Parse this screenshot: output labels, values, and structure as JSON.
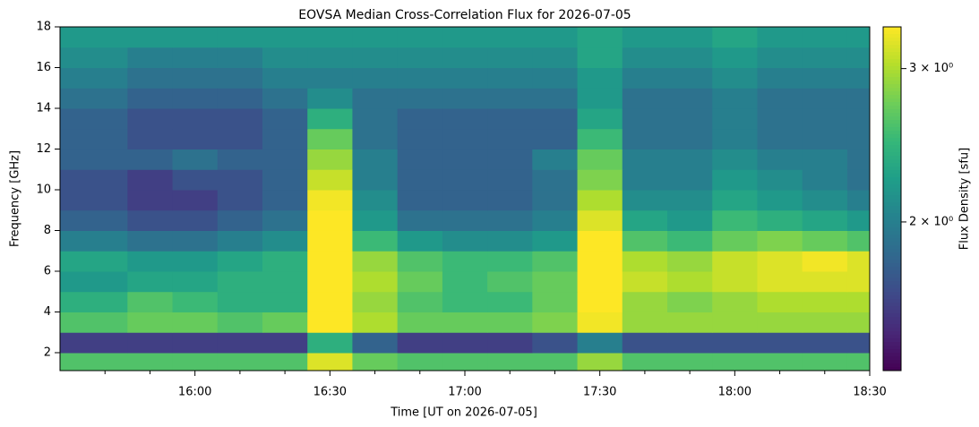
{
  "chart_data": {
    "type": "spectrogram",
    "title": "EOVSA Median Cross-Correlation Flux for 2026-07-05",
    "x_label": "Time [UT on 2026-07-05]",
    "y_label": "Frequency [GHz]",
    "colorbar_label": "Flux Density [sfu]",
    "colormap": "viridis",
    "color_scale": "log",
    "xlim": [
      15.5,
      18.5
    ],
    "xticks": [
      {
        "value": 16,
        "label": "16:00"
      },
      {
        "value": 16.5,
        "label": "16:30"
      },
      {
        "value": 17,
        "label": "17:00"
      },
      {
        "value": 17.5,
        "label": "17:30"
      },
      {
        "value": 18,
        "label": "18:00"
      },
      {
        "value": 18.5,
        "label": "18:30"
      }
    ],
    "xminorticks": [
      15.6667,
      15.8333,
      16.1667,
      16.3333,
      16.6667,
      16.8333,
      17.1667,
      17.3333,
      17.6667,
      17.8333,
      18.1667,
      18.3333
    ],
    "ylim": [
      1.12,
      18
    ],
    "yticks": [
      2,
      4,
      6,
      8,
      10,
      12,
      14,
      16,
      18
    ],
    "clim": [
      1.35,
      3.35
    ],
    "cticks": [
      {
        "value": 2,
        "label": "2 × 10⁰"
      },
      {
        "value": 3,
        "label": "3 × 10⁰"
      }
    ],
    "xbins": [
      15.5,
      15.75,
      15.9167,
      16.0833,
      16.25,
      16.4167,
      16.5833,
      16.75,
      16.9167,
      17.0833,
      17.25,
      17.4167,
      17.5833,
      17.75,
      17.9167,
      18.0833,
      18.25,
      18.4167,
      18.5
    ],
    "ybins": [
      1.12,
      2,
      3,
      4,
      5,
      6,
      7,
      8,
      9,
      10,
      11,
      12,
      13,
      14,
      15,
      16,
      17,
      18
    ],
    "z": [
      [
        2.6,
        2.6,
        2.6,
        2.6,
        2.6,
        3.2,
        2.7,
        2.6,
        2.6,
        2.6,
        2.6,
        2.9,
        2.6,
        2.6,
        2.6,
        2.6,
        2.6,
        2.6
      ],
      [
        1.6,
        1.6,
        1.6,
        1.6,
        1.6,
        2.4,
        1.8,
        1.6,
        1.6,
        1.6,
        1.7,
        2.0,
        1.7,
        1.7,
        1.7,
        1.7,
        1.7,
        1.7
      ],
      [
        2.6,
        2.7,
        2.7,
        2.6,
        2.7,
        3.5,
        3.0,
        2.7,
        2.7,
        2.7,
        2.8,
        3.3,
        2.9,
        2.9,
        2.9,
        2.9,
        2.9,
        2.9
      ],
      [
        2.4,
        2.6,
        2.5,
        2.4,
        2.4,
        3.5,
        2.9,
        2.6,
        2.5,
        2.5,
        2.7,
        3.5,
        2.9,
        2.8,
        2.9,
        3.0,
        3.0,
        3.0
      ],
      [
        2.2,
        2.3,
        2.3,
        2.4,
        2.4,
        3.5,
        3.0,
        2.7,
        2.5,
        2.6,
        2.7,
        3.5,
        3.1,
        3.0,
        3.1,
        3.2,
        3.2,
        3.2
      ],
      [
        2.3,
        2.2,
        2.2,
        2.3,
        2.4,
        3.5,
        2.9,
        2.6,
        2.5,
        2.5,
        2.6,
        3.5,
        3.0,
        2.9,
        3.1,
        3.2,
        3.3,
        3.2
      ],
      [
        2.0,
        1.9,
        1.9,
        2.0,
        2.1,
        3.5,
        2.5,
        2.2,
        2.1,
        2.1,
        2.2,
        3.4,
        2.6,
        2.5,
        2.7,
        2.8,
        2.7,
        2.6
      ],
      [
        1.8,
        1.7,
        1.7,
        1.8,
        1.9,
        3.4,
        2.2,
        1.9,
        1.9,
        1.9,
        2.0,
        3.2,
        2.3,
        2.2,
        2.5,
        2.4,
        2.3,
        2.2
      ],
      [
        1.7,
        1.6,
        1.6,
        1.7,
        1.8,
        3.3,
        2.1,
        1.8,
        1.8,
        1.8,
        1.9,
        3.0,
        2.1,
        2.1,
        2.3,
        2.2,
        2.1,
        2.0
      ],
      [
        1.7,
        1.6,
        1.7,
        1.7,
        1.8,
        3.1,
        2.0,
        1.8,
        1.8,
        1.8,
        1.9,
        2.8,
        2.0,
        2.0,
        2.2,
        2.1,
        2.0,
        1.9
      ],
      [
        1.8,
        1.8,
        1.9,
        1.8,
        1.8,
        2.9,
        2.0,
        1.8,
        1.8,
        1.8,
        2.0,
        2.7,
        2.0,
        2.0,
        2.1,
        2.0,
        2.0,
        1.9
      ],
      [
        1.8,
        1.7,
        1.7,
        1.7,
        1.8,
        2.7,
        1.9,
        1.8,
        1.8,
        1.8,
        1.8,
        2.5,
        1.9,
        1.9,
        2.0,
        1.9,
        1.9,
        1.9
      ],
      [
        1.8,
        1.7,
        1.7,
        1.7,
        1.8,
        2.4,
        1.9,
        1.8,
        1.8,
        1.8,
        1.8,
        2.3,
        1.9,
        1.9,
        2.0,
        1.9,
        1.9,
        1.9
      ],
      [
        1.9,
        1.8,
        1.8,
        1.8,
        1.9,
        2.1,
        1.9,
        1.9,
        1.9,
        1.9,
        1.9,
        2.2,
        1.9,
        1.9,
        2.0,
        1.9,
        1.9,
        1.9
      ],
      [
        2.0,
        1.9,
        1.9,
        1.9,
        2.0,
        2.0,
        2.0,
        2.0,
        2.0,
        2.0,
        2.0,
        2.2,
        2.0,
        2.0,
        2.1,
        2.0,
        2.0,
        2.0
      ],
      [
        2.1,
        2.0,
        2.0,
        2.0,
        2.1,
        2.1,
        2.1,
        2.1,
        2.1,
        2.1,
        2.1,
        2.3,
        2.1,
        2.1,
        2.2,
        2.1,
        2.1,
        2.1
      ],
      [
        2.2,
        2.2,
        2.2,
        2.2,
        2.2,
        2.2,
        2.2,
        2.2,
        2.2,
        2.2,
        2.2,
        2.3,
        2.2,
        2.2,
        2.3,
        2.2,
        2.2,
        2.2
      ]
    ]
  }
}
